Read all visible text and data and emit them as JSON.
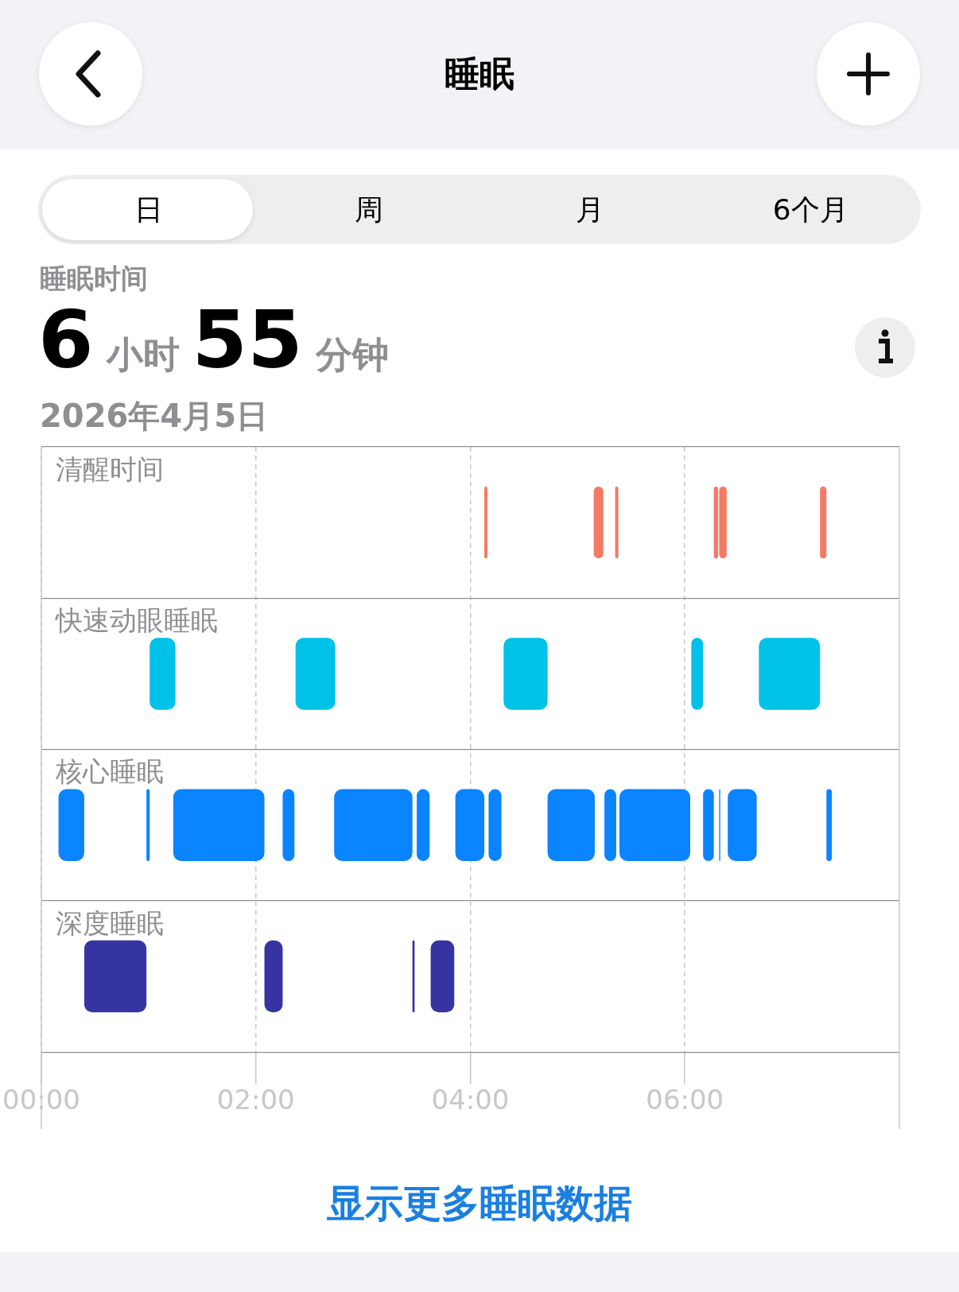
{
  "chart_data": {
    "type": "bar",
    "orientation": "horizontal",
    "title": "睡眠",
    "categories": [
      "清醒时间",
      "快速动眼睡眠",
      "核心睡眠",
      "深度睡眠"
    ],
    "xlim": [
      0,
      8
    ],
    "xticks": [
      {
        "value": 0,
        "label": "00:00"
      },
      {
        "value": 2,
        "label": "02:00"
      },
      {
        "value": 4,
        "label": "04:00"
      },
      {
        "value": 6,
        "label": "06:00"
      }
    ],
    "grid": true,
    "legend": false,
    "annotations": [
      "日",
      "周",
      "月",
      "6个月",
      "睡眠时间",
      "6",
      "小时",
      "55",
      "分钟",
      "2026年4月5日",
      "显示更多睡眠数据"
    ],
    "series": [
      {
        "color": "#0a84ff",
        "values": [
          null,
          null,
          0.24,
          null
        ],
        "base": [
          null,
          null,
          0.16,
          null
        ]
      },
      {
        "color": "#3634a3",
        "values": [
          null,
          null,
          null,
          0.58
        ],
        "base": [
          null,
          null,
          null,
          0.4
        ]
      },
      {
        "color": "#0a84ff",
        "values": [
          null,
          null,
          0.03,
          null
        ],
        "base": [
          null,
          null,
          0.98,
          null
        ]
      },
      {
        "color": "#00c1e8",
        "values": [
          null,
          0.24,
          null,
          null
        ],
        "base": [
          null,
          1.01,
          null,
          null
        ]
      },
      {
        "color": "#0a84ff",
        "values": [
          null,
          null,
          0.85,
          null
        ],
        "base": [
          null,
          null,
          1.23,
          null
        ]
      },
      {
        "color": "#3634a3",
        "values": [
          null,
          null,
          null,
          0.17
        ],
        "base": [
          null,
          null,
          null,
          2.08
        ]
      },
      {
        "color": "#0a84ff",
        "values": [
          null,
          null,
          0.11,
          null
        ],
        "base": [
          null,
          null,
          2.25,
          null
        ]
      },
      {
        "color": "#00c1e8",
        "values": [
          null,
          0.37,
          null,
          null
        ],
        "base": [
          null,
          2.37,
          null,
          null
        ]
      },
      {
        "color": "#0a84ff",
        "values": [
          null,
          null,
          0.73,
          null
        ],
        "base": [
          null,
          null,
          2.73,
          null
        ]
      },
      {
        "color": "#3634a3",
        "values": [
          null,
          null,
          null,
          0.02
        ],
        "base": [
          null,
          null,
          null,
          3.46
        ]
      },
      {
        "color": "#0a84ff",
        "values": [
          null,
          null,
          0.12,
          null
        ],
        "base": [
          null,
          null,
          3.5,
          null
        ]
      },
      {
        "color": "#3634a3",
        "values": [
          null,
          null,
          null,
          0.22
        ],
        "base": [
          null,
          null,
          null,
          3.63
        ]
      },
      {
        "color": "#0a84ff",
        "values": [
          null,
          null,
          0.27,
          null
        ],
        "base": [
          null,
          null,
          3.86,
          null
        ]
      },
      {
        "color": "#f47a65",
        "values": [
          0.03,
          null,
          null,
          null
        ],
        "base": [
          4.13,
          null,
          null,
          null
        ]
      },
      {
        "color": "#0a84ff",
        "values": [
          null,
          null,
          0.12,
          null
        ],
        "base": [
          null,
          null,
          4.17,
          null
        ]
      },
      {
        "color": "#00c1e8",
        "values": [
          null,
          0.41,
          null,
          null
        ],
        "base": [
          null,
          4.31,
          null,
          null
        ]
      },
      {
        "color": "#0a84ff",
        "values": [
          null,
          null,
          0.44,
          null
        ],
        "base": [
          null,
          null,
          4.72,
          null
        ]
      },
      {
        "color": "#f47a65",
        "values": [
          0.09,
          null,
          null,
          null
        ],
        "base": [
          5.15,
          null,
          null,
          null
        ]
      },
      {
        "color": "#0a84ff",
        "values": [
          null,
          null,
          0.11,
          null
        ],
        "base": [
          null,
          null,
          5.25,
          null
        ]
      },
      {
        "color": "#f47a65",
        "values": [
          0.03,
          null,
          null,
          null
        ],
        "base": [
          5.35,
          null,
          null,
          null
        ]
      },
      {
        "color": "#0a84ff",
        "values": [
          null,
          null,
          0.66,
          null
        ],
        "base": [
          null,
          null,
          5.39,
          null
        ]
      },
      {
        "color": "#00c1e8",
        "values": [
          null,
          0.11,
          null,
          null
        ],
        "base": [
          null,
          6.06,
          null,
          null
        ]
      },
      {
        "color": "#0a84ff",
        "values": [
          null,
          null,
          0.1,
          null
        ],
        "base": [
          null,
          null,
          6.17,
          null
        ]
      },
      {
        "color": "#f47a65",
        "values": [
          0.04,
          null,
          null,
          null
        ],
        "base": [
          6.27,
          null,
          null,
          null
        ]
      },
      {
        "color": "#0a84ff",
        "values": [
          null,
          null,
          0.01,
          null
        ],
        "base": [
          null,
          null,
          6.32,
          null
        ]
      },
      {
        "color": "#f47a65",
        "values": [
          0.07,
          null,
          null,
          null
        ],
        "base": [
          6.32,
          null,
          null,
          null
        ]
      },
      {
        "color": "#0a84ff",
        "values": [
          null,
          null,
          0.27,
          null
        ],
        "base": [
          null,
          null,
          6.4,
          null
        ]
      },
      {
        "color": "#00c1e8",
        "values": [
          null,
          0.57,
          null,
          null
        ],
        "base": [
          null,
          6.69,
          null,
          null
        ]
      },
      {
        "color": "#f47a65",
        "values": [
          0.06,
          null,
          null,
          null
        ],
        "base": [
          7.26,
          null,
          null,
          null
        ]
      },
      {
        "color": "#0a84ff",
        "values": [
          null,
          null,
          0.05,
          null
        ],
        "base": [
          null,
          null,
          7.32,
          null
        ]
      }
    ]
  }
}
